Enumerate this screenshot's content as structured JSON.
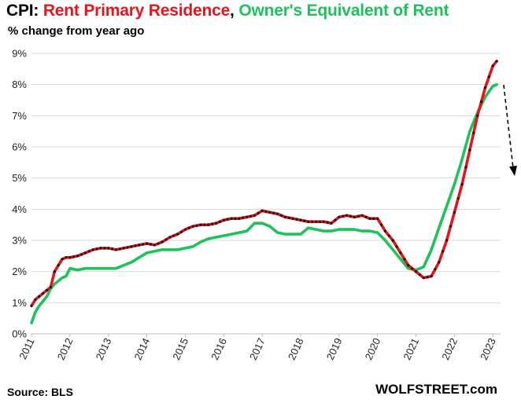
{
  "header": {
    "title_prefix": "CPI: ",
    "title_series_a": "Rent Primary Residence",
    "title_sep": ", ",
    "title_series_b": "Owner's Equivalent of Rent",
    "subtitle": "% change from year ago"
  },
  "footer": {
    "source": "Source: BLS",
    "brand": "WOLFSTREET.com"
  },
  "colors": {
    "rent": "#e8141b",
    "oer": "#1ec25a",
    "marker": "#111111",
    "grid": "#d9d9d9"
  },
  "chart_data": {
    "type": "line",
    "xlabel": "",
    "ylabel": "",
    "xlim": [
      2011,
      2023.2
    ],
    "ylim": [
      0,
      9
    ],
    "grid": true,
    "x_ticks": [
      "2011",
      "2012",
      "2013",
      "2014",
      "2015",
      "2016",
      "2017",
      "2018",
      "2019",
      "2020",
      "2021",
      "2022",
      "2023"
    ],
    "y_ticks": [
      "0%",
      "1%",
      "2%",
      "3%",
      "4%",
      "5%",
      "6%",
      "7%",
      "8%",
      "9%"
    ],
    "series": [
      {
        "name": "Rent Primary Residence",
        "markers": true,
        "points": [
          [
            2011.0,
            0.9
          ],
          [
            2011.1,
            1.1
          ],
          [
            2011.2,
            1.2
          ],
          [
            2011.3,
            1.3
          ],
          [
            2011.4,
            1.4
          ],
          [
            2011.5,
            1.5
          ],
          [
            2011.6,
            2.0
          ],
          [
            2011.7,
            2.2
          ],
          [
            2011.8,
            2.4
          ],
          [
            2011.9,
            2.45
          ],
          [
            2012.0,
            2.45
          ],
          [
            2012.2,
            2.5
          ],
          [
            2012.4,
            2.6
          ],
          [
            2012.6,
            2.7
          ],
          [
            2012.8,
            2.75
          ],
          [
            2013.0,
            2.75
          ],
          [
            2013.2,
            2.7
          ],
          [
            2013.4,
            2.75
          ],
          [
            2013.6,
            2.8
          ],
          [
            2013.8,
            2.85
          ],
          [
            2014.0,
            2.9
          ],
          [
            2014.2,
            2.85
          ],
          [
            2014.4,
            2.95
          ],
          [
            2014.6,
            3.1
          ],
          [
            2014.8,
            3.2
          ],
          [
            2015.0,
            3.35
          ],
          [
            2015.2,
            3.45
          ],
          [
            2015.4,
            3.5
          ],
          [
            2015.6,
            3.5
          ],
          [
            2015.8,
            3.55
          ],
          [
            2016.0,
            3.65
          ],
          [
            2016.2,
            3.7
          ],
          [
            2016.4,
            3.7
          ],
          [
            2016.6,
            3.75
          ],
          [
            2016.8,
            3.8
          ],
          [
            2017.0,
            3.95
          ],
          [
            2017.2,
            3.9
          ],
          [
            2017.4,
            3.85
          ],
          [
            2017.6,
            3.75
          ],
          [
            2017.8,
            3.7
          ],
          [
            2018.0,
            3.65
          ],
          [
            2018.2,
            3.6
          ],
          [
            2018.4,
            3.6
          ],
          [
            2018.6,
            3.6
          ],
          [
            2018.8,
            3.55
          ],
          [
            2019.0,
            3.75
          ],
          [
            2019.2,
            3.8
          ],
          [
            2019.4,
            3.75
          ],
          [
            2019.6,
            3.8
          ],
          [
            2019.8,
            3.7
          ],
          [
            2020.0,
            3.7
          ],
          [
            2020.2,
            3.3
          ],
          [
            2020.4,
            3.0
          ],
          [
            2020.6,
            2.6
          ],
          [
            2020.8,
            2.2
          ],
          [
            2021.0,
            2.0
          ],
          [
            2021.2,
            1.8
          ],
          [
            2021.4,
            1.85
          ],
          [
            2021.6,
            2.3
          ],
          [
            2021.8,
            3.0
          ],
          [
            2022.0,
            3.9
          ],
          [
            2022.2,
            4.8
          ],
          [
            2022.4,
            5.9
          ],
          [
            2022.6,
            7.0
          ],
          [
            2022.8,
            7.9
          ],
          [
            2023.0,
            8.6
          ],
          [
            2023.1,
            8.75
          ]
        ]
      },
      {
        "name": "Owner's Equivalent of Rent",
        "markers": false,
        "points": [
          [
            2011.0,
            0.35
          ],
          [
            2011.1,
            0.7
          ],
          [
            2011.2,
            0.9
          ],
          [
            2011.3,
            1.05
          ],
          [
            2011.4,
            1.2
          ],
          [
            2011.5,
            1.45
          ],
          [
            2011.6,
            1.6
          ],
          [
            2011.7,
            1.7
          ],
          [
            2011.8,
            1.8
          ],
          [
            2011.9,
            1.85
          ],
          [
            2012.0,
            2.1
          ],
          [
            2012.2,
            2.05
          ],
          [
            2012.4,
            2.1
          ],
          [
            2012.6,
            2.1
          ],
          [
            2012.8,
            2.1
          ],
          [
            2013.0,
            2.1
          ],
          [
            2013.2,
            2.1
          ],
          [
            2013.4,
            2.2
          ],
          [
            2013.6,
            2.3
          ],
          [
            2013.8,
            2.45
          ],
          [
            2014.0,
            2.6
          ],
          [
            2014.2,
            2.65
          ],
          [
            2014.4,
            2.7
          ],
          [
            2014.6,
            2.7
          ],
          [
            2014.8,
            2.7
          ],
          [
            2015.0,
            2.75
          ],
          [
            2015.2,
            2.8
          ],
          [
            2015.4,
            2.95
          ],
          [
            2015.6,
            3.05
          ],
          [
            2015.8,
            3.1
          ],
          [
            2016.0,
            3.15
          ],
          [
            2016.2,
            3.2
          ],
          [
            2016.4,
            3.25
          ],
          [
            2016.6,
            3.3
          ],
          [
            2016.8,
            3.55
          ],
          [
            2017.0,
            3.55
          ],
          [
            2017.2,
            3.45
          ],
          [
            2017.4,
            3.25
          ],
          [
            2017.6,
            3.2
          ],
          [
            2017.8,
            3.2
          ],
          [
            2018.0,
            3.2
          ],
          [
            2018.2,
            3.4
          ],
          [
            2018.4,
            3.35
          ],
          [
            2018.6,
            3.3
          ],
          [
            2018.8,
            3.3
          ],
          [
            2019.0,
            3.35
          ],
          [
            2019.2,
            3.35
          ],
          [
            2019.4,
            3.35
          ],
          [
            2019.6,
            3.3
          ],
          [
            2019.8,
            3.3
          ],
          [
            2020.0,
            3.25
          ],
          [
            2020.2,
            3.0
          ],
          [
            2020.4,
            2.7
          ],
          [
            2020.6,
            2.4
          ],
          [
            2020.8,
            2.1
          ],
          [
            2021.0,
            2.05
          ],
          [
            2021.2,
            2.15
          ],
          [
            2021.4,
            2.7
          ],
          [
            2021.6,
            3.4
          ],
          [
            2021.8,
            4.1
          ],
          [
            2022.0,
            4.8
          ],
          [
            2022.2,
            5.6
          ],
          [
            2022.4,
            6.5
          ],
          [
            2022.6,
            7.1
          ],
          [
            2022.8,
            7.6
          ],
          [
            2023.0,
            7.95
          ],
          [
            2023.1,
            8.0
          ]
        ]
      }
    ]
  }
}
